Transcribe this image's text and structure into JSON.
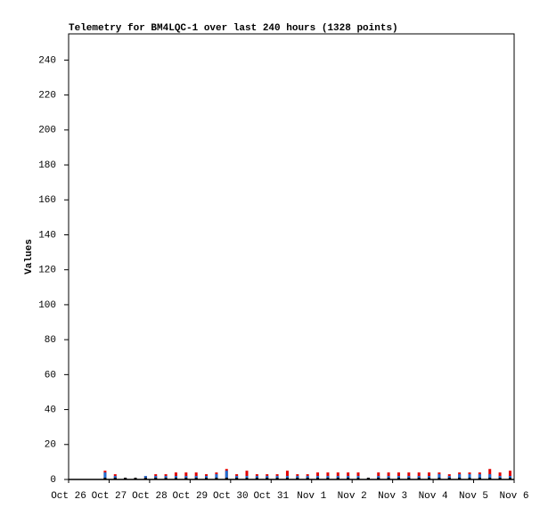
{
  "chart_data": {
    "type": "bar",
    "title": "Telemetry for BM4LQC-1 over last 240 hours (1328 points)",
    "y_label": "Values",
    "x": [
      0.9,
      1.15,
      1.4,
      1.65,
      1.9,
      2.15,
      2.4,
      2.65,
      2.9,
      3.15,
      3.4,
      3.65,
      3.9,
      4.15,
      4.4,
      4.65,
      4.9,
      5.15,
      5.4,
      5.65,
      5.9,
      6.15,
      6.4,
      6.65,
      6.9,
      7.15,
      7.4,
      7.65,
      7.9,
      8.15,
      8.4,
      8.65,
      8.9,
      9.15,
      9.4,
      9.65,
      9.9,
      10.15,
      10.4,
      10.65,
      10.9
    ],
    "series": [
      {
        "color": "#e00000",
        "values": [
          5,
          3,
          1,
          1,
          2,
          3,
          3,
          4,
          4,
          4,
          3,
          4,
          6,
          3,
          5,
          3,
          3,
          3,
          5,
          3,
          3,
          4,
          4,
          4,
          4,
          4,
          1,
          4,
          4,
          4,
          4,
          4,
          4,
          4,
          3,
          4,
          4,
          4,
          6,
          4,
          5
        ]
      },
      {
        "color": "#1e6ed2",
        "values": [
          4,
          2,
          1,
          1,
          2,
          2,
          2,
          2,
          2,
          2,
          2,
          3,
          5,
          2,
          2,
          2,
          2,
          2,
          2,
          2,
          2,
          2,
          2,
          2,
          2,
          2,
          1,
          2,
          2,
          2,
          2,
          2,
          2,
          3,
          2,
          3,
          3,
          3,
          3,
          2,
          2
        ]
      },
      {
        "color": "#000000",
        "values": [
          1,
          1,
          1,
          1,
          1,
          1,
          1,
          1,
          1,
          1,
          1,
          1,
          1,
          1,
          1,
          1,
          1,
          1,
          1,
          1,
          1,
          1,
          1,
          1,
          1,
          1,
          1,
          1,
          1,
          1,
          1,
          1,
          1,
          1,
          1,
          1,
          1,
          1,
          1,
          1,
          1
        ]
      }
    ],
    "xlim": [
      0,
      11
    ],
    "xticks": [
      {
        "value": 0,
        "label": "Oct 26"
      },
      {
        "value": 1,
        "label": "Oct 27"
      },
      {
        "value": 2,
        "label": "Oct 28"
      },
      {
        "value": 3,
        "label": "Oct 29"
      },
      {
        "value": 4,
        "label": "Oct 30"
      },
      {
        "value": 5,
        "label": "Oct 31"
      },
      {
        "value": 6,
        "label": "Nov 1"
      },
      {
        "value": 7,
        "label": "Nov 2"
      },
      {
        "value": 8,
        "label": "Nov 3"
      },
      {
        "value": 9,
        "label": "Nov 4"
      },
      {
        "value": 10,
        "label": "Nov 5"
      },
      {
        "value": 11,
        "label": "Nov 6"
      }
    ],
    "ylim": [
      0,
      255
    ],
    "yticks": [
      0,
      20,
      40,
      60,
      80,
      100,
      120,
      140,
      160,
      180,
      200,
      220,
      240
    ]
  }
}
